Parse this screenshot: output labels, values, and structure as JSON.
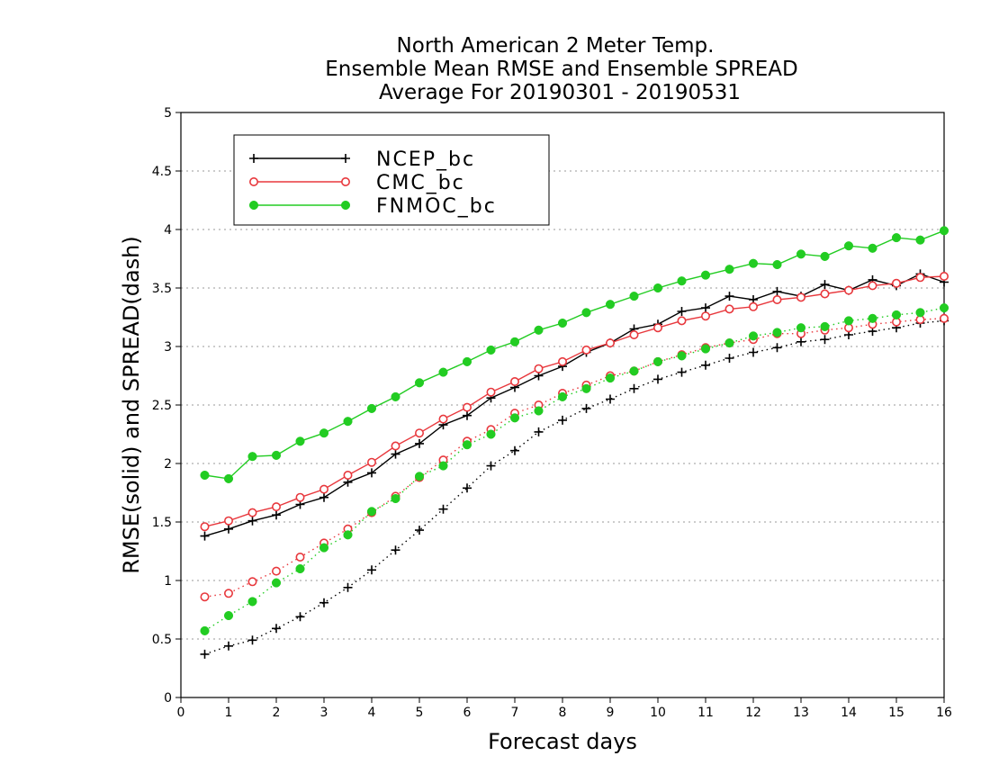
{
  "chart_data": {
    "type": "line",
    "title_lines": [
      "North American 2 Meter Temp.",
      "Ensemble Mean RMSE and Ensemble SPREAD",
      "Average For 20190301 - 20190531"
    ],
    "xlabel": "Forecast days",
    "ylabel": "RMSE(solid) and SPREAD(dash)",
    "xlim": [
      0,
      16
    ],
    "ylim": [
      0,
      5
    ],
    "xticks": [
      "0",
      "1",
      "2",
      "3",
      "4",
      "5",
      "6",
      "7",
      "8",
      "9",
      "10",
      "11",
      "12",
      "13",
      "14",
      "15",
      "16"
    ],
    "yticks": [
      "0",
      "0.5",
      "1",
      "1.5",
      "2",
      "2.5",
      "3",
      "3.5",
      "4",
      "4.5",
      "5"
    ],
    "grid": "dotted",
    "legend_position": "top-left",
    "x": [
      0.5,
      1,
      1.5,
      2,
      2.5,
      3,
      3.5,
      4,
      4.5,
      5,
      5.5,
      6,
      6.5,
      7,
      7.5,
      8,
      8.5,
      9,
      9.5,
      10,
      10.5,
      11,
      11.5,
      12,
      12.5,
      13,
      13.5,
      14,
      14.5,
      15,
      15.5,
      16
    ],
    "series": [
      {
        "name": "NCEP_bc",
        "color": "#000000",
        "marker": "plus",
        "rmse": [
          1.38,
          1.44,
          1.51,
          1.56,
          1.65,
          1.71,
          1.84,
          1.92,
          2.08,
          2.17,
          2.33,
          2.41,
          2.56,
          2.65,
          2.75,
          2.83,
          2.95,
          3.03,
          3.15,
          3.19,
          3.3,
          3.33,
          3.43,
          3.4,
          3.47,
          3.43,
          3.53,
          3.48,
          3.57,
          3.52,
          3.62,
          3.55
        ],
        "spread": [
          0.37,
          0.44,
          0.49,
          0.59,
          0.69,
          0.81,
          0.94,
          1.09,
          1.26,
          1.43,
          1.61,
          1.79,
          1.98,
          2.11,
          2.27,
          2.37,
          2.47,
          2.55,
          2.64,
          2.72,
          2.78,
          2.84,
          2.9,
          2.95,
          2.99,
          3.04,
          3.06,
          3.1,
          3.13,
          3.16,
          3.2,
          3.22
        ]
      },
      {
        "name": "CMC_bc",
        "color": "#e8383d",
        "marker": "open-circle",
        "rmse": [
          1.46,
          1.51,
          1.58,
          1.63,
          1.71,
          1.78,
          1.9,
          2.01,
          2.15,
          2.26,
          2.38,
          2.48,
          2.61,
          2.7,
          2.81,
          2.87,
          2.97,
          3.03,
          3.1,
          3.16,
          3.22,
          3.26,
          3.32,
          3.34,
          3.4,
          3.42,
          3.45,
          3.48,
          3.52,
          3.54,
          3.59,
          3.6
        ],
        "spread": [
          0.86,
          0.89,
          0.99,
          1.08,
          1.2,
          1.32,
          1.44,
          1.58,
          1.72,
          1.88,
          2.03,
          2.19,
          2.29,
          2.43,
          2.5,
          2.6,
          2.67,
          2.75,
          2.79,
          2.87,
          2.93,
          2.99,
          3.03,
          3.06,
          3.11,
          3.11,
          3.14,
          3.16,
          3.19,
          3.21,
          3.23,
          3.24
        ]
      },
      {
        "name": "FNMOC_bc",
        "color": "#22cc22",
        "marker": "filled-circle",
        "rmse": [
          1.9,
          1.87,
          2.06,
          2.07,
          2.19,
          2.26,
          2.36,
          2.47,
          2.57,
          2.69,
          2.78,
          2.87,
          2.97,
          3.04,
          3.14,
          3.2,
          3.29,
          3.36,
          3.43,
          3.5,
          3.56,
          3.61,
          3.66,
          3.71,
          3.7,
          3.79,
          3.77,
          3.86,
          3.84,
          3.93,
          3.91,
          3.99
        ],
        "spread": [
          0.57,
          0.7,
          0.82,
          0.98,
          1.1,
          1.28,
          1.39,
          1.59,
          1.7,
          1.89,
          1.98,
          2.16,
          2.25,
          2.39,
          2.45,
          2.57,
          2.64,
          2.73,
          2.79,
          2.87,
          2.92,
          2.98,
          3.03,
          3.09,
          3.12,
          3.16,
          3.17,
          3.22,
          3.24,
          3.27,
          3.29,
          3.33
        ]
      }
    ]
  }
}
